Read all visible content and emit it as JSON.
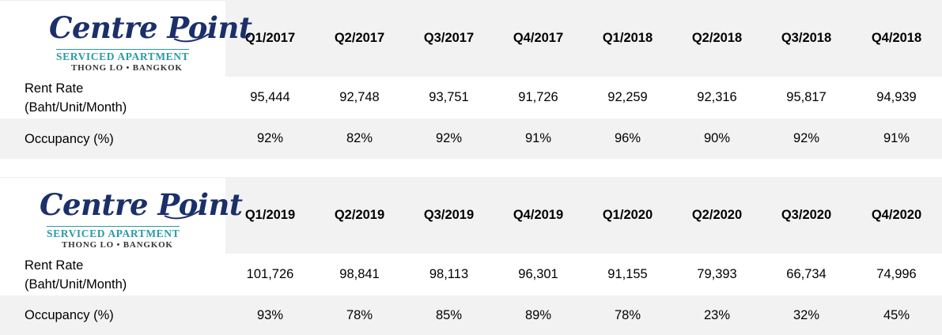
{
  "logo": {
    "title": "Centre Point",
    "subtitle": "SERVICED APARTMENT",
    "location": "THONG LO • BANGKOK",
    "colors": {
      "title": "#1b2f6a",
      "subtitle": "#2a9aa6"
    }
  },
  "chart_data": [
    {
      "type": "table",
      "columns": [
        "Q1/2017",
        "Q2/2017",
        "Q3/2017",
        "Q4/2017",
        "Q1/2018",
        "Q2/2018",
        "Q3/2018",
        "Q4/2018"
      ],
      "rows": [
        {
          "label_line1": "Rent Rate",
          "label_line2": "(Baht/Unit/Month)",
          "values": [
            "95,444",
            "92,748",
            "93,751",
            "91,726",
            "92,259",
            "92,316",
            "95,817",
            "94,939"
          ]
        },
        {
          "label_line1": "Occupancy (%)",
          "values": [
            "92%",
            "82%",
            "92%",
            "91%",
            "96%",
            "90%",
            "92%",
            "91%"
          ]
        }
      ]
    },
    {
      "type": "table",
      "columns": [
        "Q1/2019",
        "Q2/2019",
        "Q3/2019",
        "Q4/2019",
        "Q1/2020",
        "Q2/2020",
        "Q3/2020",
        "Q4/2020"
      ],
      "rows": [
        {
          "label_line1": "Rent Rate",
          "label_line2": "(Baht/Unit/Month)",
          "values": [
            "101,726",
            "98,841",
            "98,113",
            "96,301",
            "91,155",
            "79,393",
            "66,734",
            "74,996"
          ]
        },
        {
          "label_line1": "Occupancy (%)",
          "values": [
            "93%",
            "78%",
            "85%",
            "89%",
            "78%",
            "23%",
            "32%",
            "45%"
          ]
        }
      ]
    }
  ]
}
